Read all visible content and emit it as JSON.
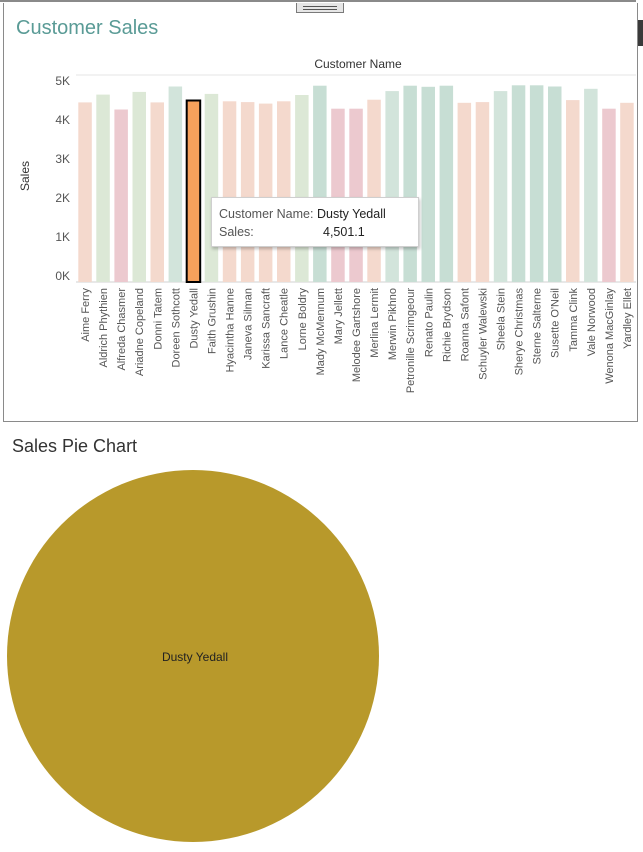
{
  "bar_title": "Customer Sales",
  "pie_title": "Sales Pie Chart",
  "tooltip": {
    "name_label": "Customer Name:",
    "name_value": "Dusty Yedall",
    "sales_label": "Sales:",
    "sales_value": "4,501.1"
  },
  "colors": {
    "title": "#5a9b96",
    "highlight": "#f6a15c",
    "pie": "#b8992b",
    "palette": [
      "#f4d9cd",
      "#dce8d6",
      "#ecc9cf",
      "#d2e4db",
      "#c7ded4"
    ]
  },
  "chart_data": [
    {
      "type": "bar",
      "title": "Customer Sales",
      "xlabel": "Customer Name",
      "ylabel": "Sales",
      "ylim": [
        0,
        5000
      ],
      "yticks": [
        "0K",
        "1K",
        "2K",
        "3K",
        "4K",
        "5K"
      ],
      "categories": [
        "Aime Ferry",
        "Aldrich Phythien",
        "Alfreda Chasmer",
        "Ariadne Copeland",
        "Donni Tatem",
        "Doreen Sothcott",
        "Dusty Yedall",
        "Faith Grushin",
        "Hyacintha Hanne",
        "Janeva Silman",
        "Karissa Sancraft",
        "Lance Cheatle",
        "Lorne Boldry",
        "Mady McMennum",
        "Mary Jellett",
        "Melodee Gartshore",
        "Merlina Lermit",
        "Merwin Pikhno",
        "Petronille Scrimgeour",
        "Renato Paulin",
        "Richie Brydson",
        "Roanna Safont",
        "Schuyler Walewski",
        "Sheela Stein",
        "Sherye Christmas",
        "Sterne Salterne",
        "Susette O'Neil",
        "Tamma Clink",
        "Vale Norwood",
        "Wenona MacGinlay",
        "Yardley Ellet"
      ],
      "values": [
        4450,
        4650,
        4270,
        4720,
        4450,
        4860,
        4501.1,
        4670,
        4480,
        4460,
        4420,
        4480,
        4640,
        4880,
        4290,
        4290,
        4520,
        4740,
        4880,
        4850,
        4880,
        4440,
        4460,
        4740,
        4890,
        4890,
        4860,
        4510,
        4800,
        4290,
        4440
      ],
      "color_index": [
        0,
        1,
        2,
        1,
        0,
        3,
        0,
        1,
        0,
        0,
        0,
        0,
        1,
        4,
        2,
        2,
        0,
        3,
        4,
        4,
        4,
        0,
        0,
        3,
        4,
        4,
        4,
        0,
        3,
        2,
        0
      ],
      "highlighted": "Dusty Yedall"
    },
    {
      "type": "pie",
      "title": "Sales Pie Chart",
      "slices": [
        {
          "label": "Dusty Yedall",
          "value": 4501.1
        }
      ]
    }
  ]
}
